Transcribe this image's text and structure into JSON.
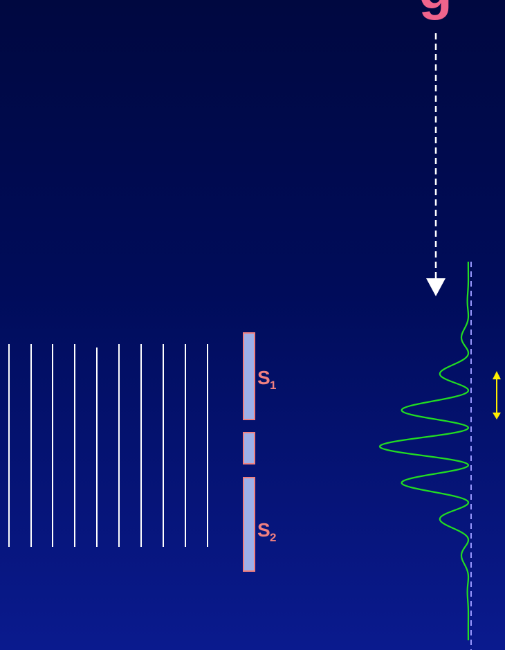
{
  "colors": {
    "background_top": "#000840",
    "background_bottom": "#0a1a8e",
    "wavefront": "#ffffff",
    "slit_fill": "#9db0e8",
    "slit_border": "#f08080",
    "label": "#f08080",
    "intensity_curve": "#22dd22",
    "screen_line": "#9999ff",
    "arrow_dashed": "#ffffff",
    "double_arrow": "#ffee00",
    "cutoff_text": "#f0648c"
  },
  "labels": {
    "slit1_letter": "S",
    "slit1_sub": "1",
    "slit2_letter": "S",
    "slit2_sub": "2",
    "cutoff_glyph": "g"
  },
  "icons": {
    "pointer_arrow": "dashed-down-arrow-icon",
    "displacement_arrow": "double-headed-arrow-icon"
  }
}
